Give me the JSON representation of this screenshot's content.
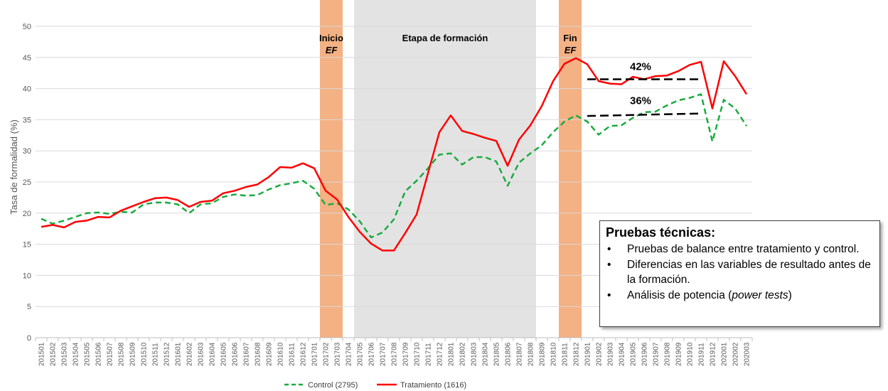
{
  "chart_data": {
    "type": "line",
    "ylabel": "Tasa de formalidad (%)",
    "xlabel": "",
    "ylim": [
      0,
      50
    ],
    "yticks": [
      "0",
      "5",
      "10",
      "15",
      "20",
      "25",
      "30",
      "35",
      "40",
      "45",
      "50"
    ],
    "grid": true,
    "legend_position": "bottom",
    "categories": [
      "201501",
      "201502",
      "201503",
      "201504",
      "201505",
      "201506",
      "201507",
      "201508",
      "201509",
      "201510",
      "201511",
      "201512",
      "201601",
      "201602",
      "201603",
      "201604",
      "201605",
      "201606",
      "201607",
      "201608",
      "201609",
      "201610",
      "201611",
      "201612",
      "201701",
      "201702",
      "201703",
      "201704",
      "201705",
      "201706",
      "201707",
      "201708",
      "201709",
      "201710",
      "201711",
      "201712",
      "201801",
      "201802",
      "201803",
      "201804",
      "201805",
      "201806",
      "201807",
      "201808",
      "201809",
      "201810",
      "201811",
      "201812",
      "201901",
      "201902",
      "201903",
      "201904",
      "201905",
      "201906",
      "201907",
      "201908",
      "201909",
      "201910",
      "201911",
      "201912",
      "202001",
      "202002",
      "202003"
    ],
    "series": [
      {
        "name": "Control (2795)",
        "color": "#1aab40",
        "style": "dashed",
        "values": [
          19.1,
          18.3,
          18.8,
          19.4,
          20.0,
          20.1,
          19.9,
          20.2,
          20.1,
          21.4,
          21.7,
          21.7,
          21.4,
          20.0,
          21.4,
          21.6,
          22.6,
          23.0,
          22.8,
          22.9,
          23.8,
          24.5,
          24.8,
          25.2,
          23.9,
          21.3,
          21.6,
          20.6,
          18.7,
          16.1,
          16.9,
          19.0,
          23.5,
          25.2,
          27.2,
          29.4,
          29.6,
          27.8,
          29.0,
          29.0,
          28.3,
          24.4,
          28.1,
          29.6,
          30.9,
          33.0,
          34.7,
          35.7,
          34.7,
          32.6,
          34.0,
          34.1,
          35.3,
          36.2,
          36.3,
          37.3,
          38.1,
          38.5,
          39.1,
          31.5,
          38.2,
          36.8,
          34.0
        ]
      },
      {
        "name": "Tratamiento (1616)",
        "color": "#ff0000",
        "style": "solid",
        "values": [
          17.8,
          18.1,
          17.7,
          18.6,
          18.8,
          19.4,
          19.3,
          20.4,
          21.1,
          21.8,
          22.4,
          22.5,
          22.1,
          21.0,
          21.8,
          22.0,
          23.2,
          23.6,
          24.2,
          24.6,
          25.8,
          27.4,
          27.3,
          28.0,
          27.2,
          23.6,
          22.2,
          19.4,
          17.0,
          15.1,
          14.0,
          14.0,
          16.8,
          19.8,
          26.4,
          33.0,
          35.7,
          33.2,
          32.7,
          32.1,
          31.6,
          27.6,
          31.8,
          34.1,
          37.2,
          41.2,
          44.0,
          44.9,
          43.9,
          41.2,
          40.8,
          40.7,
          41.9,
          41.5,
          42.0,
          42.1,
          42.8,
          43.8,
          44.3,
          36.8,
          44.4,
          42.0,
          39.1
        ]
      }
    ],
    "shaded_regions": [
      {
        "id": "inicio",
        "from_category": "201702",
        "to_category": "201703",
        "color": "#f4b183",
        "label_line1": "Inicio",
        "label_line2": "EF"
      },
      {
        "id": "etapa",
        "from_category": "201705",
        "to_category": "201808",
        "color": "#e3e3e3",
        "label_line1": "Etapa de formación",
        "label_line2": ""
      },
      {
        "id": "fin",
        "from_category": "201811",
        "to_category": "201812",
        "color": "#f4b183",
        "label_line1": "Fin",
        "label_line2": "EF"
      }
    ],
    "annotations": [
      {
        "text": "42%",
        "from_category": "201901",
        "to_category": "201911",
        "y_start": 41.5,
        "y_end": 41.5
      },
      {
        "text": "36%",
        "from_category": "201901",
        "to_category": "201911",
        "y_start": 35.6,
        "y_end": 36.0
      }
    ]
  },
  "notes": {
    "title": "Pruebas técnicas:",
    "bullet_symbol": "•",
    "item1": "Pruebas de balance entre tratamiento y control.",
    "item2": "Diferencias en las variables de resultado antes de la formación.",
    "item3_prefix": "Análisis de potencia (",
    "item3_italic": "power tests",
    "item3_suffix": ")"
  }
}
